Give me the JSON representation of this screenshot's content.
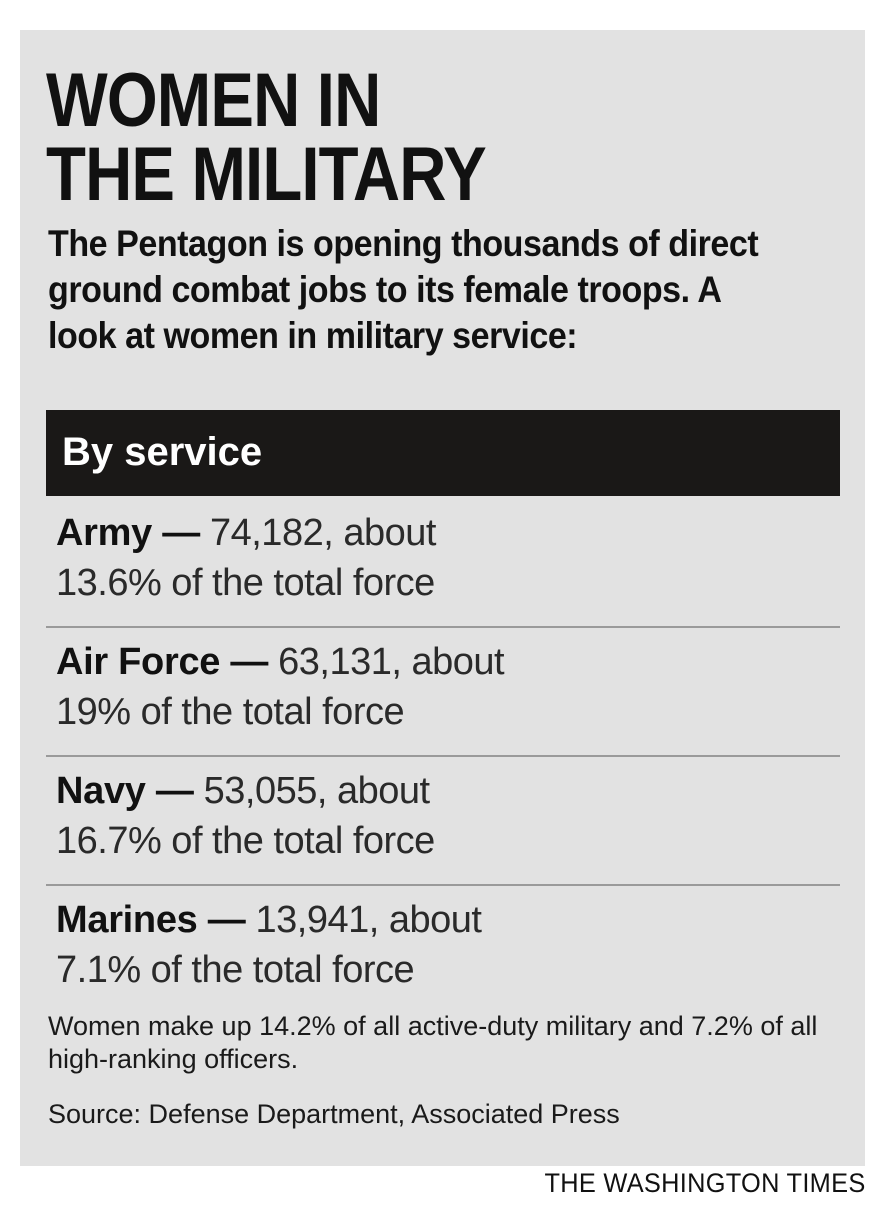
{
  "headline": {
    "line1": "WOMEN IN",
    "line2": "THE MILITARY"
  },
  "intro": "The Pentagon is opening thousands of direct ground combat jobs to its female troops. A look at women in military service:",
  "section": {
    "label": "By service"
  },
  "services": [
    {
      "name": "Army —",
      "value": " 74,182, about",
      "share": "13.6% of the total force"
    },
    {
      "name": "Air Force —",
      "value": " 63,131, about",
      "share": "19% of the total force"
    },
    {
      "name": "Navy —",
      "value": " 53,055, about",
      "share": "16.7% of the total force"
    },
    {
      "name": "Marines —",
      "value": " 13,941, about",
      "share": "7.1% of the total force"
    }
  ],
  "note": "Women make up 14.2% of all active-duty military and 7.2% of all high-ranking officers.",
  "source": "Source: Defense Department, Associated Press",
  "credit": "THE WASHINGTON TIMES",
  "colors": {
    "panel_background": "#e2e2e2",
    "section_bar": "#1a1817"
  }
}
